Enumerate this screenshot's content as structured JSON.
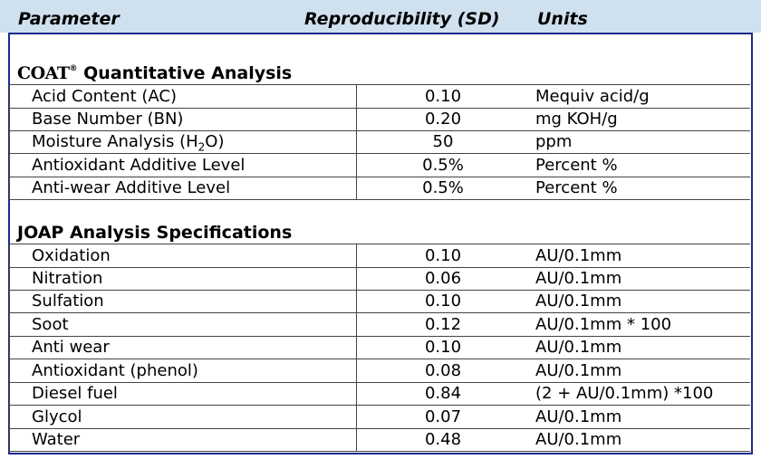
{
  "header": {
    "parameter": "Parameter",
    "reproducibility": "Reproducibility (SD)",
    "units": "Units"
  },
  "coat": {
    "logo": "COAT",
    "reg": "®",
    "title": "Quantitative Analysis",
    "rows": [
      {
        "label": "Acid Content (AC)",
        "value": "0.10",
        "unit": "Mequiv acid/g"
      },
      {
        "label": "Base Number (BN)",
        "value": "0.20",
        "unit": "mg KOH/g"
      },
      {
        "label_pre": "Moisture Analysis (H",
        "label_sub": "2",
        "label_post": "O)",
        "value": "50",
        "unit": "ppm"
      },
      {
        "label": "Antioxidant Additive Level",
        "value": "0.5%",
        "unit": "Percent %"
      },
      {
        "label": "Anti-wear Additive Level",
        "value": "0.5%",
        "unit": "Percent %"
      }
    ]
  },
  "joap": {
    "title": "JOAP Analysis Specifications",
    "rows": [
      {
        "label": "Oxidation",
        "value": "0.10",
        "unit": "AU/0.1mm"
      },
      {
        "label": "Nitration",
        "value": "0.06",
        "unit": "AU/0.1mm"
      },
      {
        "label": "Sulfation",
        "value": "0.10",
        "unit": "AU/0.1mm"
      },
      {
        "label": "Soot",
        "value": "0.12",
        "unit": "AU/0.1mm * 100"
      },
      {
        "label": "Anti wear",
        "value": "0.10",
        "unit": "AU/0.1mm"
      },
      {
        "label": "Antioxidant (phenol)",
        "value": "0.08",
        "unit": "AU/0.1mm"
      },
      {
        "label": "Diesel fuel",
        "value": "0.84",
        "unit": "(2 + AU/0.1mm) *100"
      },
      {
        "label": "Glycol",
        "value": "0.07",
        "unit": "AU/0.1mm"
      },
      {
        "label": "Water",
        "value": "0.48",
        "unit": "AU/0.1mm"
      }
    ]
  }
}
